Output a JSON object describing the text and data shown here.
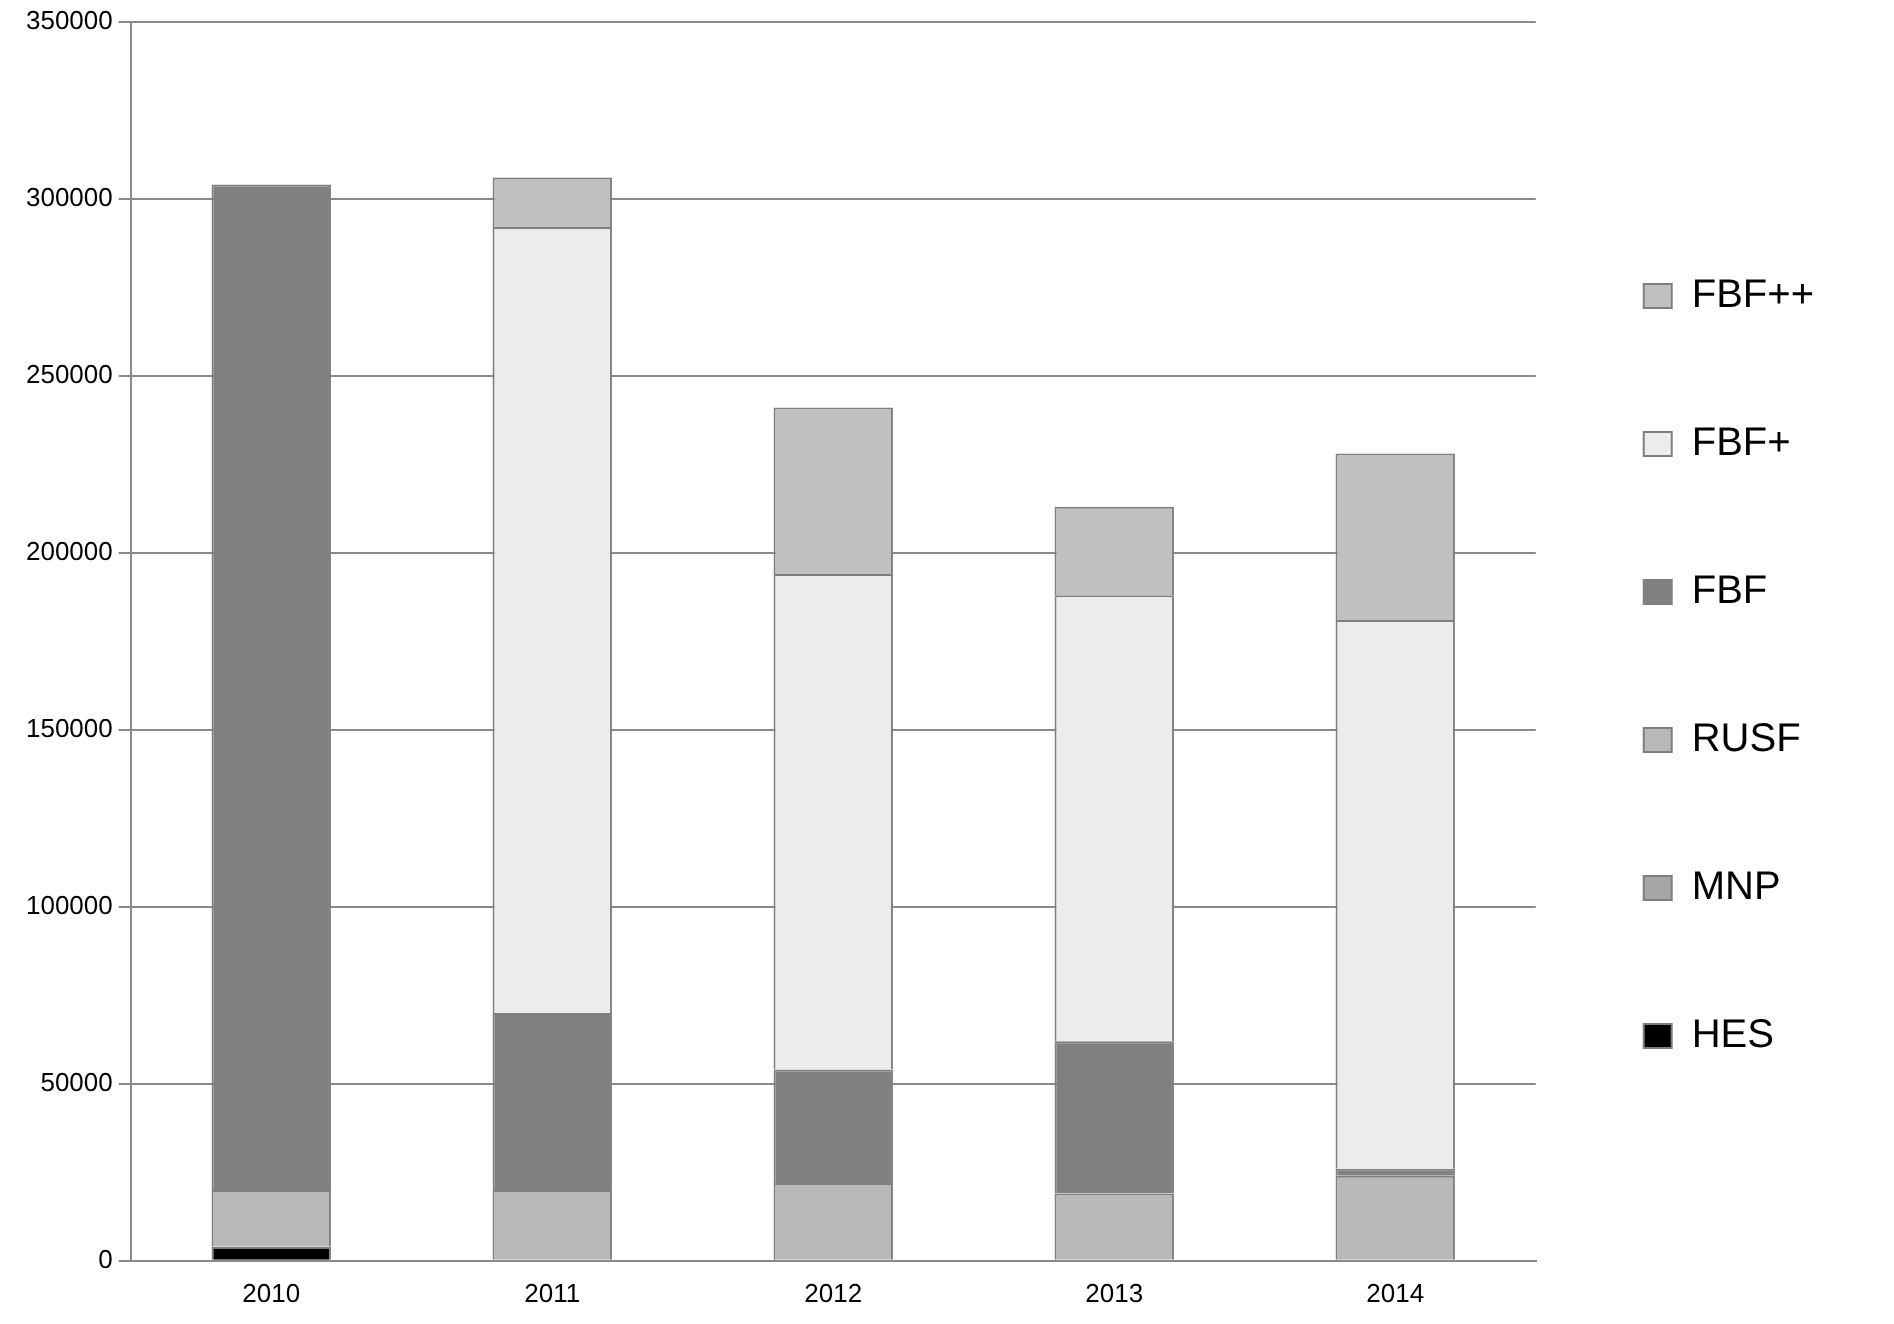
{
  "chart_data": {
    "type": "bar",
    "stacked": true,
    "categories": [
      "2010",
      "2011",
      "2012",
      "2013",
      "2014"
    ],
    "series": [
      {
        "name": "HES",
        "color": "#000000",
        "values": [
          4000,
          0,
          0,
          0,
          0
        ]
      },
      {
        "name": "MNP",
        "color": "#a6a6a6",
        "values": [
          0,
          0,
          0,
          0,
          0
        ]
      },
      {
        "name": "RUSF",
        "color": "#b8b8b8",
        "values": [
          16000,
          20000,
          22000,
          19000,
          24000
        ]
      },
      {
        "name": "FBF",
        "color": "#808080",
        "values": [
          284000,
          50000,
          32000,
          43000,
          2000
        ]
      },
      {
        "name": "FBF+",
        "color": "#ececec",
        "values": [
          0,
          222000,
          140000,
          126000,
          155000
        ]
      },
      {
        "name": "FBF++",
        "color": "#c0c0c0",
        "values": [
          0,
          14000,
          47000,
          25000,
          47000
        ]
      }
    ],
    "ylim": [
      0,
      350000
    ],
    "yticks": [
      0,
      50000,
      100000,
      150000,
      200000,
      250000,
      300000,
      350000
    ],
    "grid": "y",
    "legend": "right"
  }
}
